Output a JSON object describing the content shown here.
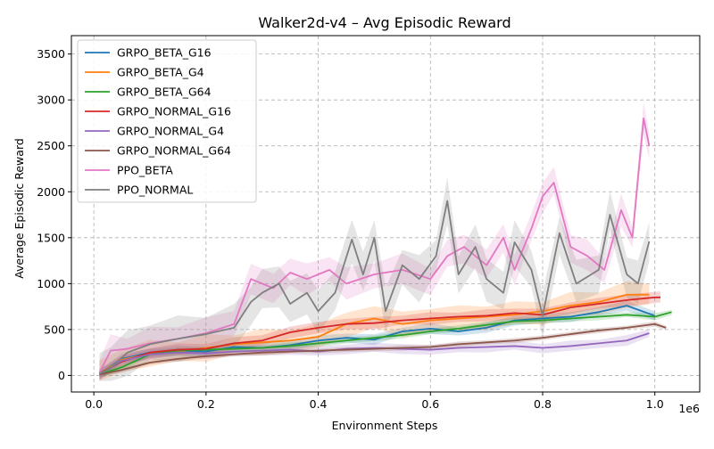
{
  "chart_data": {
    "type": "line",
    "title": "Walker2d-v4 – Avg Episodic Reward",
    "xlabel": "Environment Steps",
    "ylabel": "Average Episodic Reward",
    "x_offset_label": "1e6",
    "xlim": [
      -0.04,
      1.08
    ],
    "ylim": [
      -180,
      3700
    ],
    "xticks": [
      0.0,
      0.2,
      0.4,
      0.6,
      0.8,
      1.0
    ],
    "xtick_labels": [
      "0.0",
      "0.2",
      "0.4",
      "0.6",
      "0.8",
      "1.0"
    ],
    "yticks": [
      0,
      500,
      1000,
      1500,
      2000,
      2500,
      3000,
      3500
    ],
    "ytick_labels": [
      "0",
      "500",
      "1000",
      "1500",
      "2000",
      "2500",
      "3000",
      "3500"
    ],
    "grid": true,
    "legend_position": "upper-left",
    "series": [
      {
        "name": "GRPO_BETA_G16",
        "color": "#1f77b4",
        "x": [
          0.01,
          0.05,
          0.1,
          0.15,
          0.2,
          0.25,
          0.3,
          0.35,
          0.4,
          0.45,
          0.5,
          0.55,
          0.6,
          0.65,
          0.7,
          0.75,
          0.8,
          0.85,
          0.9,
          0.95,
          1.0
        ],
        "y": [
          20,
          180,
          250,
          270,
          260,
          310,
          300,
          330,
          380,
          410,
          390,
          480,
          510,
          480,
          520,
          600,
          620,
          640,
          690,
          760,
          650
        ],
        "band": 60
      },
      {
        "name": "GRPO_BETA_G4",
        "color": "#ff7f0e",
        "x": [
          0.01,
          0.05,
          0.1,
          0.15,
          0.2,
          0.25,
          0.3,
          0.35,
          0.4,
          0.45,
          0.5,
          0.55,
          0.6,
          0.65,
          0.7,
          0.75,
          0.8,
          0.85,
          0.9,
          0.95,
          0.99
        ],
        "y": [
          20,
          170,
          240,
          260,
          300,
          340,
          360,
          380,
          420,
          560,
          620,
          560,
          600,
          620,
          640,
          660,
          700,
          760,
          800,
          880,
          880
        ],
        "band": 150
      },
      {
        "name": "GRPO_BETA_G64",
        "color": "#2ca02c",
        "x": [
          0.01,
          0.05,
          0.1,
          0.15,
          0.2,
          0.25,
          0.3,
          0.35,
          0.4,
          0.45,
          0.5,
          0.55,
          0.6,
          0.65,
          0.7,
          0.75,
          0.8,
          0.85,
          0.9,
          0.95,
          1.0,
          1.03
        ],
        "y": [
          10,
          90,
          230,
          270,
          280,
          290,
          300,
          320,
          350,
          380,
          410,
          440,
          480,
          510,
          550,
          590,
          600,
          620,
          640,
          660,
          640,
          690
        ],
        "band": 40
      },
      {
        "name": "GRPO_NORMAL_G16",
        "color": "#d62728",
        "x": [
          0.01,
          0.05,
          0.1,
          0.15,
          0.2,
          0.25,
          0.3,
          0.35,
          0.4,
          0.45,
          0.5,
          0.55,
          0.6,
          0.65,
          0.7,
          0.75,
          0.8,
          0.85,
          0.9,
          0.95,
          1.0,
          1.01
        ],
        "y": [
          20,
          150,
          250,
          280,
          290,
          350,
          380,
          470,
          520,
          560,
          570,
          600,
          620,
          640,
          650,
          680,
          660,
          740,
          780,
          820,
          850,
          850
        ],
        "band": 70
      },
      {
        "name": "GRPO_NORMAL_G4",
        "color": "#9467bd",
        "x": [
          0.01,
          0.05,
          0.1,
          0.15,
          0.2,
          0.25,
          0.3,
          0.35,
          0.4,
          0.45,
          0.5,
          0.55,
          0.6,
          0.65,
          0.7,
          0.75,
          0.8,
          0.85,
          0.9,
          0.95,
          0.99
        ],
        "y": [
          10,
          160,
          230,
          250,
          240,
          260,
          270,
          280,
          260,
          290,
          300,
          290,
          280,
          300,
          310,
          320,
          300,
          320,
          350,
          380,
          460
        ],
        "band": 60
      },
      {
        "name": "GRPO_NORMAL_G64",
        "color": "#8c564b",
        "x": [
          0.01,
          0.05,
          0.1,
          0.15,
          0.2,
          0.25,
          0.3,
          0.35,
          0.4,
          0.45,
          0.5,
          0.55,
          0.6,
          0.65,
          0.7,
          0.75,
          0.8,
          0.85,
          0.9,
          0.95,
          1.0,
          1.02
        ],
        "y": [
          10,
          60,
          140,
          180,
          210,
          230,
          250,
          260,
          270,
          280,
          290,
          300,
          310,
          340,
          360,
          380,
          410,
          450,
          490,
          520,
          560,
          520
        ],
        "band": 30
      },
      {
        "name": "PPO_BETA",
        "color": "#e377c2",
        "x": [
          0.01,
          0.03,
          0.06,
          0.1,
          0.15,
          0.2,
          0.25,
          0.28,
          0.32,
          0.35,
          0.38,
          0.42,
          0.45,
          0.5,
          0.55,
          0.6,
          0.63,
          0.66,
          0.7,
          0.73,
          0.75,
          0.78,
          0.8,
          0.82,
          0.85,
          0.88,
          0.91,
          0.94,
          0.96,
          0.98,
          0.99
        ],
        "y": [
          30,
          270,
          290,
          350,
          400,
          460,
          560,
          1050,
          950,
          1120,
          1050,
          1150,
          1000,
          1100,
          1150,
          1050,
          1300,
          1400,
          1200,
          1500,
          1150,
          1600,
          1950,
          2100,
          1400,
          1300,
          1150,
          1800,
          1500,
          2800,
          2500
        ],
        "band": 180
      },
      {
        "name": "PPO_NORMAL",
        "color": "#7f7f7f",
        "x": [
          0.01,
          0.03,
          0.06,
          0.1,
          0.15,
          0.2,
          0.25,
          0.28,
          0.3,
          0.33,
          0.35,
          0.38,
          0.4,
          0.43,
          0.46,
          0.48,
          0.5,
          0.52,
          0.55,
          0.58,
          0.61,
          0.63,
          0.65,
          0.68,
          0.7,
          0.73,
          0.75,
          0.78,
          0.8,
          0.83,
          0.86,
          0.9,
          0.92,
          0.95,
          0.97,
          0.99
        ],
        "y": [
          20,
          80,
          250,
          340,
          400,
          450,
          520,
          800,
          900,
          1000,
          780,
          900,
          700,
          900,
          1480,
          1100,
          1500,
          700,
          1200,
          1050,
          1300,
          1900,
          1100,
          1400,
          1050,
          900,
          1450,
          1150,
          650,
          1550,
          1000,
          1150,
          1750,
          1100,
          1000,
          1460
        ],
        "band": 260
      }
    ]
  }
}
